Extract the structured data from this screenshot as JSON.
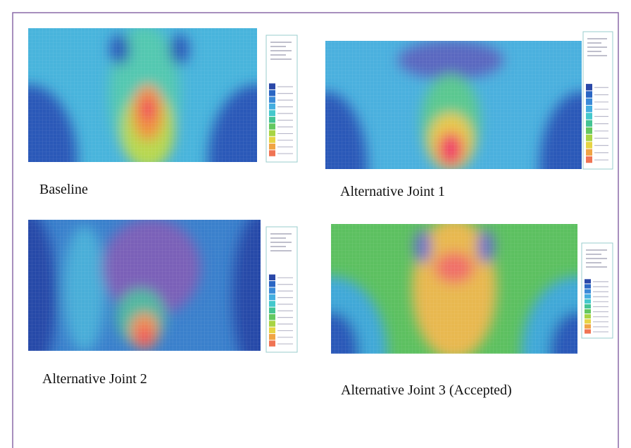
{
  "panels": [
    {
      "caption": "Baseline"
    },
    {
      "caption": "Alternative Joint 1"
    },
    {
      "caption": "Alternative Joint 2"
    },
    {
      "caption": "Alternative Joint 3 (Accepted)"
    }
  ]
}
